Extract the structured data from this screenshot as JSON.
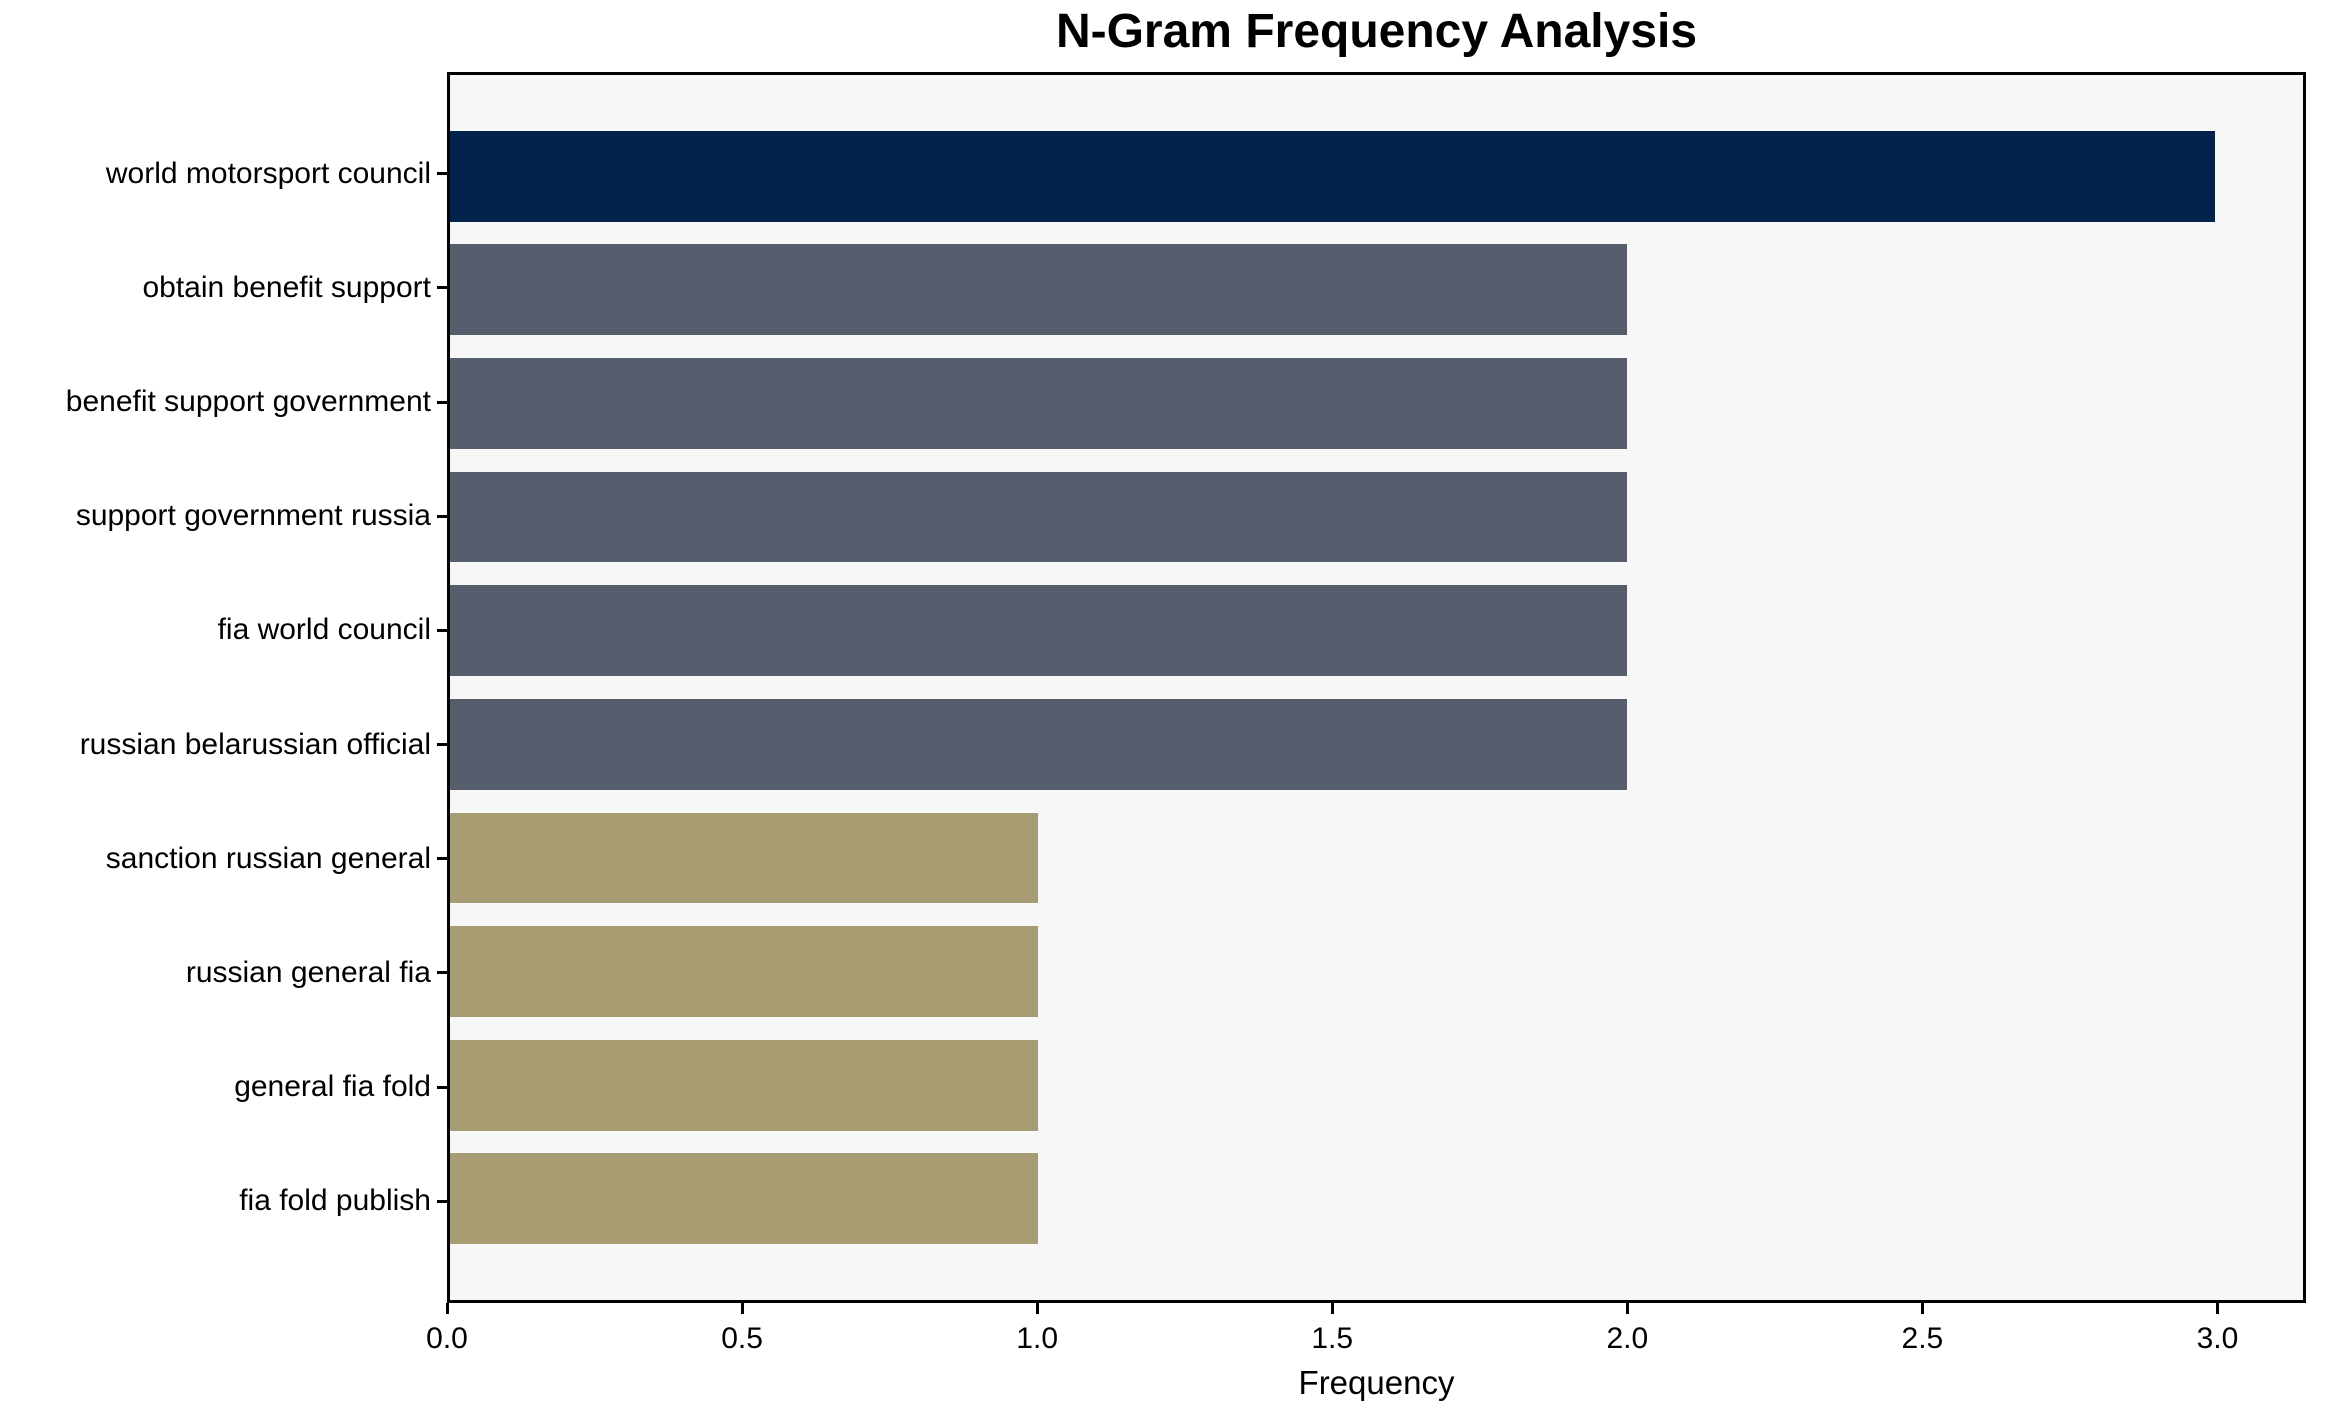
{
  "title": "N-Gram Frequency Analysis",
  "chart_data": {
    "type": "bar",
    "orientation": "horizontal",
    "title": "N-Gram Frequency Analysis",
    "xlabel": "Frequency",
    "ylabel": "",
    "categories": [
      "world motorsport council",
      "obtain benefit support",
      "benefit support government",
      "support government russia",
      "fia world council",
      "russian belarussian official",
      "sanction russian general",
      "russian general fia",
      "general fia fold",
      "fia fold publish"
    ],
    "values": [
      3,
      2,
      2,
      2,
      2,
      2,
      1,
      1,
      1,
      1
    ],
    "bar_colors": [
      "#02234c",
      "#565d6d",
      "#565d6d",
      "#565d6d",
      "#565d6d",
      "#565d6d",
      "#a89d72",
      "#a89d72",
      "#a89d72",
      "#a89d72"
    ],
    "xlim": [
      0,
      3.15
    ],
    "xticks": [
      0.0,
      0.5,
      1.0,
      1.5,
      2.0,
      2.5,
      3.0
    ],
    "xtick_labels": [
      "0.0",
      "0.5",
      "1.0",
      "1.5",
      "2.0",
      "2.5",
      "3.0"
    ],
    "grid": false,
    "legend": false,
    "plot_background": "#f7f7f8",
    "figure_background": "#ffffff",
    "spine_color": "#000000",
    "bar_height_fraction": 0.8,
    "axis_margin_fraction": 0.49
  }
}
